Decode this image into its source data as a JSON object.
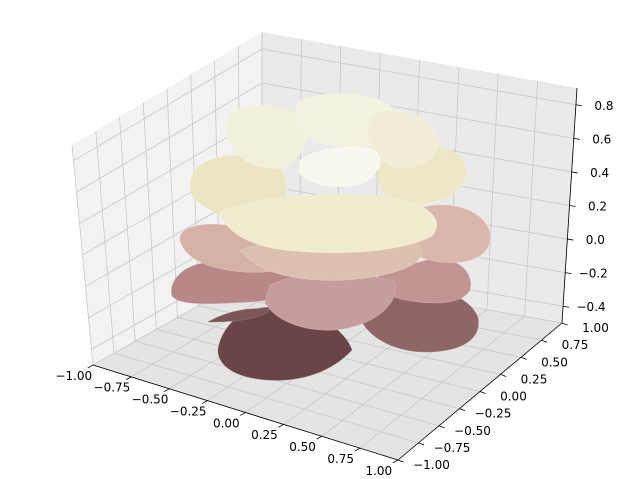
{
  "chart_data": {
    "type": "surface",
    "title": "",
    "xlabel": "",
    "ylabel": "",
    "zlabel": "",
    "x_ticks": [
      "−1.00",
      "−0.75",
      "−0.50",
      "−0.25",
      "0.00",
      "0.25",
      "0.50",
      "0.75",
      "1.00"
    ],
    "y_ticks": [
      "−1.00",
      "−0.75",
      "−0.50",
      "−0.25",
      "0.00",
      "0.25",
      "0.50",
      "0.75",
      "1.00"
    ],
    "z_ticks": [
      "−0.4",
      "−0.2",
      "0.0",
      "0.2",
      "0.4",
      "0.6",
      "0.8"
    ],
    "xlim": [
      -1.0,
      1.0
    ],
    "ylim": [
      -1.0,
      1.0
    ],
    "zlim": [
      -0.5,
      0.9
    ],
    "colormap": "pink",
    "colors": {
      "pane_back": "#eaeaea",
      "pane_side": "#f2f2f2",
      "pane_floor": "#e4e4e4",
      "grid": "#c8c8c8",
      "axis_line": "#000000"
    },
    "surface": {
      "kind": "rose",
      "petals": [
        {
          "layer": "outer-bottom",
          "count": 5,
          "z_range": [
            -0.5,
            -0.3
          ]
        },
        {
          "layer": "lower",
          "count": 5,
          "z_range": [
            -0.3,
            0.0
          ]
        },
        {
          "layer": "middle",
          "count": 6,
          "z_range": [
            0.0,
            0.4
          ]
        },
        {
          "layer": "upper",
          "count": 6,
          "z_range": [
            0.4,
            0.7
          ]
        },
        {
          "layer": "center",
          "count": 5,
          "z_range": [
            0.7,
            0.85
          ]
        }
      ]
    }
  }
}
